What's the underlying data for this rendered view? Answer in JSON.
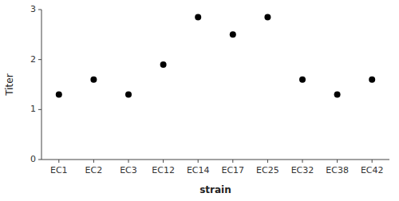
{
  "chart_data": {
    "type": "scatter",
    "categories": [
      "EC1",
      "EC2",
      "EC3",
      "EC12",
      "EC14",
      "EC17",
      "EC25",
      "EC32",
      "EC38",
      "EC42"
    ],
    "values": [
      1.3,
      1.6,
      1.3,
      1.9,
      2.85,
      2.5,
      2.85,
      1.6,
      1.3,
      1.6
    ],
    "color": "black",
    "xlabel": "strain",
    "ylabel": "Titer",
    "ylim": [
      0,
      3
    ],
    "yticks": [
      0,
      1,
      2,
      3
    ],
    "grid": false
  }
}
